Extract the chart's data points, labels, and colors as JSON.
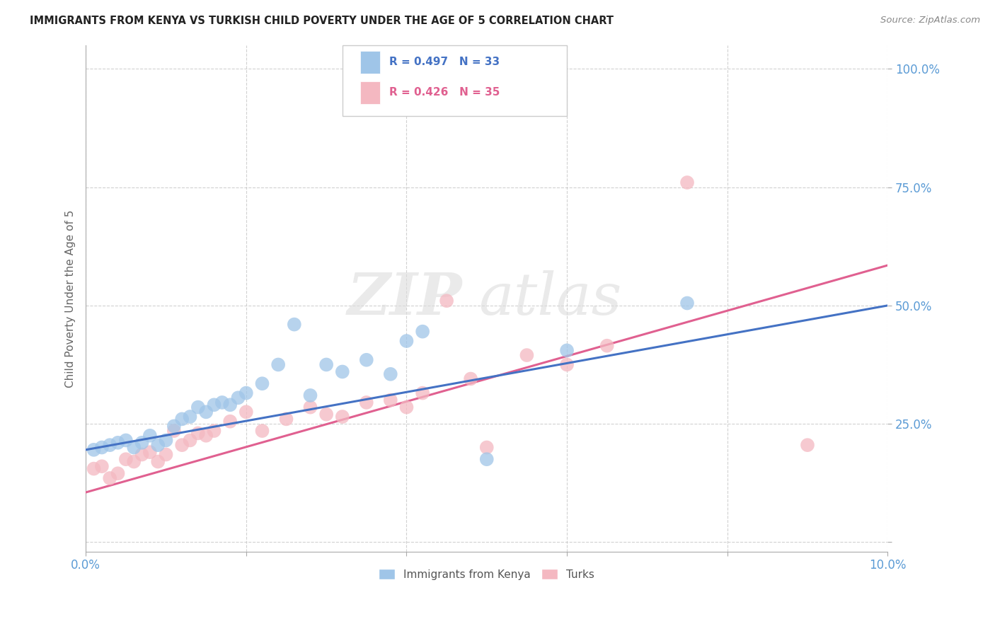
{
  "title": "IMMIGRANTS FROM KENYA VS TURKISH CHILD POVERTY UNDER THE AGE OF 5 CORRELATION CHART",
  "source": "Source: ZipAtlas.com",
  "ylabel": "Child Poverty Under the Age of 5",
  "xlim": [
    0.0,
    0.1
  ],
  "ylim": [
    -0.02,
    1.05
  ],
  "xticks": [
    0.0,
    0.02,
    0.04,
    0.06,
    0.08,
    0.1
  ],
  "xtick_labels": [
    "0.0%",
    "",
    "",
    "",
    "",
    "10.0%"
  ],
  "yticks": [
    0.0,
    0.25,
    0.5,
    0.75,
    1.0
  ],
  "ytick_labels": [
    "",
    "25.0%",
    "50.0%",
    "75.0%",
    "100.0%"
  ],
  "ytick_color": "#5b9bd5",
  "xtick_color": "#5b9bd5",
  "blue_color": "#9fc5e8",
  "pink_color": "#f4b8c1",
  "blue_line_color": "#4472c4",
  "pink_line_color": "#e06090",
  "legend_blue_label": "Immigrants from Kenya",
  "legend_pink_label": "Turks",
  "r_blue": "R = 0.497",
  "n_blue": "N = 33",
  "r_pink": "R = 0.426",
  "n_pink": "N = 35",
  "watermark_zip": "ZIP",
  "watermark_atlas": "atlas",
  "blue_scatter_x": [
    0.001,
    0.002,
    0.003,
    0.004,
    0.005,
    0.006,
    0.007,
    0.008,
    0.009,
    0.01,
    0.011,
    0.012,
    0.013,
    0.014,
    0.015,
    0.016,
    0.017,
    0.018,
    0.019,
    0.02,
    0.022,
    0.024,
    0.026,
    0.03,
    0.032,
    0.035,
    0.038,
    0.042,
    0.05,
    0.06,
    0.075,
    0.028,
    0.04
  ],
  "blue_scatter_y": [
    0.195,
    0.2,
    0.205,
    0.21,
    0.215,
    0.2,
    0.21,
    0.225,
    0.205,
    0.215,
    0.245,
    0.26,
    0.265,
    0.285,
    0.275,
    0.29,
    0.295,
    0.29,
    0.305,
    0.315,
    0.335,
    0.375,
    0.46,
    0.375,
    0.36,
    0.385,
    0.355,
    0.445,
    0.175,
    0.405,
    0.505,
    0.31,
    0.425
  ],
  "pink_scatter_x": [
    0.001,
    0.002,
    0.003,
    0.004,
    0.005,
    0.006,
    0.007,
    0.008,
    0.009,
    0.01,
    0.011,
    0.012,
    0.013,
    0.014,
    0.015,
    0.016,
    0.018,
    0.02,
    0.022,
    0.025,
    0.028,
    0.03,
    0.032,
    0.035,
    0.038,
    0.04,
    0.042,
    0.045,
    0.048,
    0.05,
    0.055,
    0.06,
    0.065,
    0.075,
    0.09
  ],
  "pink_scatter_y": [
    0.155,
    0.16,
    0.135,
    0.145,
    0.175,
    0.17,
    0.185,
    0.19,
    0.17,
    0.185,
    0.235,
    0.205,
    0.215,
    0.23,
    0.225,
    0.235,
    0.255,
    0.275,
    0.235,
    0.26,
    0.285,
    0.27,
    0.265,
    0.295,
    0.3,
    0.285,
    0.315,
    0.51,
    0.345,
    0.2,
    0.395,
    0.375,
    0.415,
    0.76,
    0.205
  ],
  "blue_trend_x": [
    0.0,
    0.1
  ],
  "blue_trend_y": [
    0.195,
    0.5
  ],
  "pink_trend_x": [
    0.0,
    0.1
  ],
  "pink_trend_y": [
    0.105,
    0.585
  ],
  "figsize": [
    14.06,
    8.92
  ],
  "dpi": 100
}
